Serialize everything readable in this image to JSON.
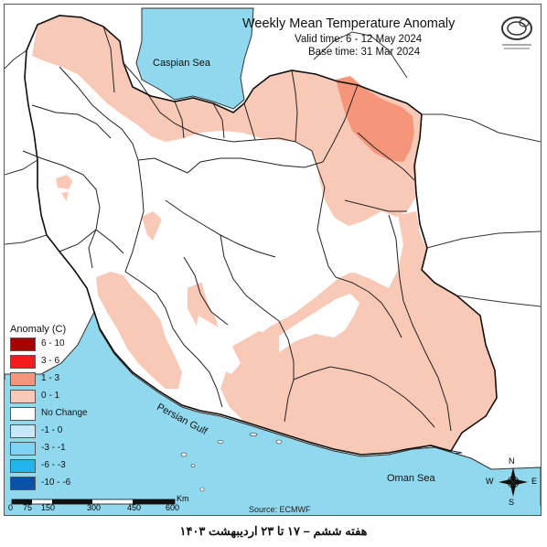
{
  "title": "Weekly Mean Temperature Anomaly",
  "valid_time": "Valid time: 6 - 12 May 2024",
  "base_time": "Base time: 31 Mar 2024",
  "labels": {
    "caspian": "Caspian Sea",
    "persian_gulf": "Persian Gulf",
    "oman_sea": "Oman Sea"
  },
  "legend": {
    "title": "Anomaly (C)",
    "items": [
      {
        "label": "6 - 10",
        "color": "#a80000"
      },
      {
        "label": "3 - 6",
        "color": "#f21c1c"
      },
      {
        "label": "1 - 3",
        "color": "#f5957a"
      },
      {
        "label": "0 - 1",
        "color": "#f9c9b7"
      },
      {
        "label": "No Change",
        "color": "#ffffff"
      },
      {
        "label": "-1 - 0",
        "color": "#c6e8fa"
      },
      {
        "label": "-3 - -1",
        "color": "#7fd4f6"
      },
      {
        "label": "-6 - -3",
        "color": "#22b4ec"
      },
      {
        "label": "-10 - -6",
        "color": "#0a4fa8"
      }
    ]
  },
  "scale": {
    "ticks": [
      "0",
      "75",
      "150",
      "300",
      "450",
      "600"
    ],
    "unit": "Km"
  },
  "compass": {
    "n": "N",
    "s": "S",
    "e": "E",
    "w": "W"
  },
  "source": "Source: ECMWF",
  "footer": "هفته ششم – ۱۷ تا ۲۳ اردیبهشت ۱۴۰۳",
  "colors": {
    "sea": "#8fd8ee",
    "light_anomaly": "#f9c9b7",
    "medium_anomaly": "#f5957a",
    "no_change": "#ffffff"
  }
}
